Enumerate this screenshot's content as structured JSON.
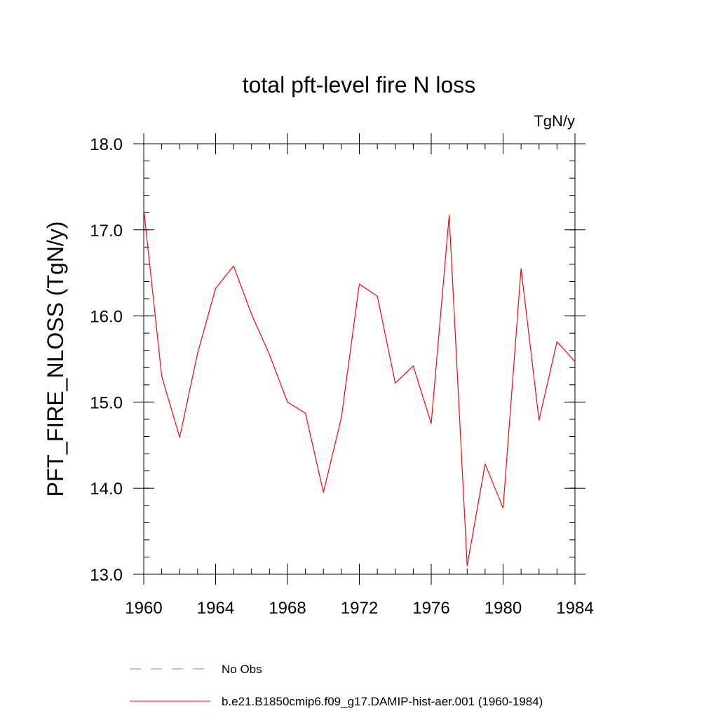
{
  "chart_data": {
    "type": "line",
    "title": "total pft-level fire N loss",
    "units_label": "TgN/y",
    "ylabel": "PFT_FIRE_NLOSS  (TgN/y)",
    "xlabel": "",
    "xlim": [
      1960,
      1984
    ],
    "ylim": [
      13.0,
      18.0
    ],
    "x_major_ticks": [
      1960,
      1964,
      1968,
      1972,
      1976,
      1980,
      1984
    ],
    "x_minor_step": 1,
    "y_major_ticks": [
      "13.0",
      "14.0",
      "15.0",
      "16.0",
      "17.0",
      "18.0"
    ],
    "y_minor_step": 0.2,
    "grid": false,
    "x": [
      1960,
      1961,
      1962,
      1963,
      1964,
      1965,
      1966,
      1967,
      1968,
      1969,
      1970,
      1971,
      1972,
      1973,
      1974,
      1975,
      1976,
      1977,
      1978,
      1979,
      1980,
      1981,
      1982,
      1983,
      1984
    ],
    "series": [
      {
        "name": "b.e21.B1850cmip6.f09_g17.DAMIP-hist-aer.001 (1960-1984)",
        "color": "#ff0000",
        "values": [
          17.24,
          15.3,
          14.59,
          15.57,
          16.32,
          16.58,
          16.02,
          15.55,
          15.0,
          14.87,
          13.95,
          14.82,
          16.37,
          16.23,
          15.22,
          15.42,
          14.75,
          17.17,
          13.1,
          14.28,
          13.77,
          16.55,
          14.79,
          15.7,
          15.47
        ]
      }
    ],
    "legend": {
      "placement": "bottom",
      "entries": [
        {
          "label": "No Obs",
          "color": "#7f7fff",
          "dash": "dashed"
        },
        {
          "label": "b.e21.B1850cmip6.f09_g17.DAMIP-hist-aer.001 (1960-1984)",
          "color": "#ff0000",
          "dash": "solid"
        }
      ]
    }
  }
}
